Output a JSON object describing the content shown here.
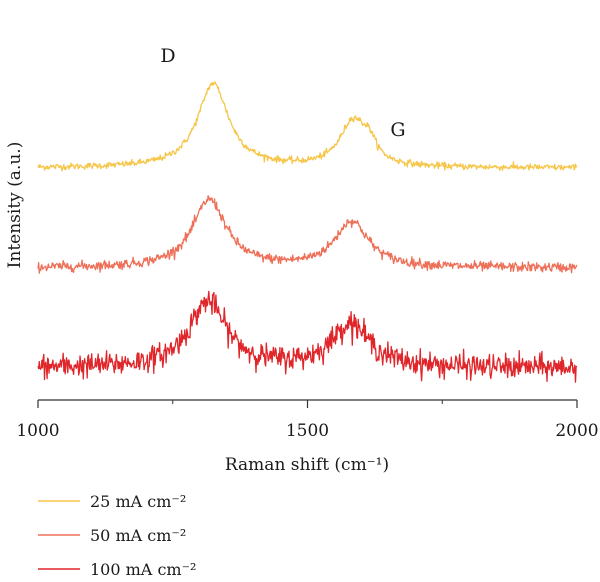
{
  "chart_data": {
    "type": "line",
    "xlabel": "Raman shift (cm⁻¹)",
    "ylabel": "Intensity (a.u.)",
    "xlim": [
      1000,
      2000
    ],
    "x_ticks": [
      1000,
      1500,
      2000
    ],
    "x_minor_ticks": [
      1250,
      1750
    ],
    "y_ticks_shown": false,
    "grid": false,
    "legend_position": "bottom-left",
    "annotations": [
      {
        "text": "D",
        "x": 1325
      },
      {
        "text": "G",
        "x": 1600
      }
    ],
    "series": [
      {
        "name": "25 mA cm⁻²",
        "color": "#f5c64a",
        "baseline": 1.0,
        "peaks": [
          {
            "center": 1325,
            "height": 0.42,
            "width": 35
          },
          {
            "center": 1585,
            "height": 0.23,
            "width": 30
          },
          {
            "center": 1615,
            "height": 0.08,
            "width": 15
          }
        ],
        "noise": 0.008
      },
      {
        "name": "50 mA cm⁻²",
        "color": "#ee7059",
        "baseline": 0.5,
        "peaks": [
          {
            "center": 1318,
            "height": 0.34,
            "width": 38
          },
          {
            "center": 1582,
            "height": 0.23,
            "width": 38
          }
        ],
        "noise": 0.012
      },
      {
        "name": "100 mA cm⁻²",
        "color": "#e0262a",
        "baseline": 0.0,
        "peaks": [
          {
            "center": 1315,
            "height": 0.33,
            "width": 42
          },
          {
            "center": 1580,
            "height": 0.22,
            "width": 42
          }
        ],
        "noise": 0.03
      }
    ]
  }
}
